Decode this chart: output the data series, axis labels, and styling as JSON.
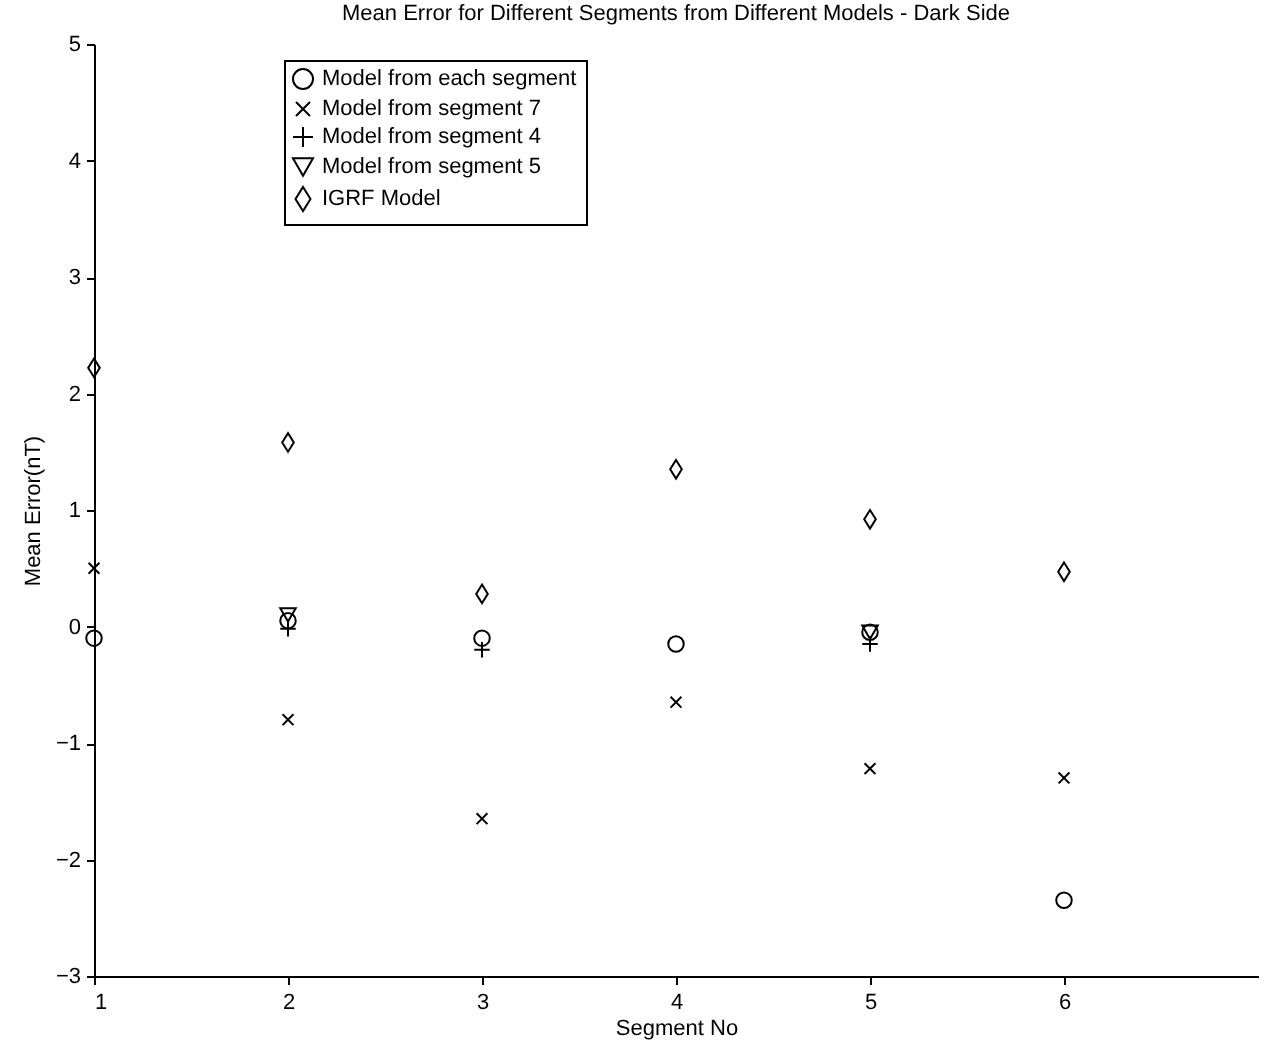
{
  "chart_data": {
    "type": "scatter",
    "title": "Mean Error for Different Segments from Different Models - Dark Side",
    "xlabel": "Segment No",
    "ylabel": "Mean Error(nT)",
    "x": [
      1,
      2,
      3,
      4,
      5,
      6
    ],
    "series": [
      {
        "name": "Model from each segment",
        "color": "#000000",
        "marker": "circle",
        "values": [
          -0.1,
          0.05,
          -0.1,
          -0.15,
          -0.05,
          -2.35
        ]
      },
      {
        "name": "Model from segment 7",
        "color": "#000000",
        "marker": "x",
        "values": [
          0.5,
          -0.8,
          -1.65,
          -0.65,
          -1.22,
          -1.3
        ]
      },
      {
        "name": "Model from segment 4",
        "color": "#000000",
        "marker": "cross",
        "values": [
          null,
          -0.02,
          -0.2,
          null,
          -0.15,
          null
        ]
      },
      {
        "name": "Model from segment 5",
        "color": "#000000",
        "marker": "triangle-down",
        "values": [
          null,
          0.1,
          null,
          null,
          -0.05,
          null
        ]
      },
      {
        "name": "IGRF Model",
        "color": "#000000",
        "marker": "diamond",
        "values": [
          2.22,
          1.58,
          0.28,
          1.35,
          0.92,
          0.47
        ]
      }
    ],
    "xlim": [
      1,
      7
    ],
    "xticks": [
      1,
      2,
      3,
      4,
      5,
      6
    ],
    "ylim": [
      -3,
      5
    ],
    "yticks": [
      -3,
      -2,
      -1,
      0,
      1,
      2,
      3,
      4,
      5
    ],
    "legend": "top left",
    "grid": false
  }
}
